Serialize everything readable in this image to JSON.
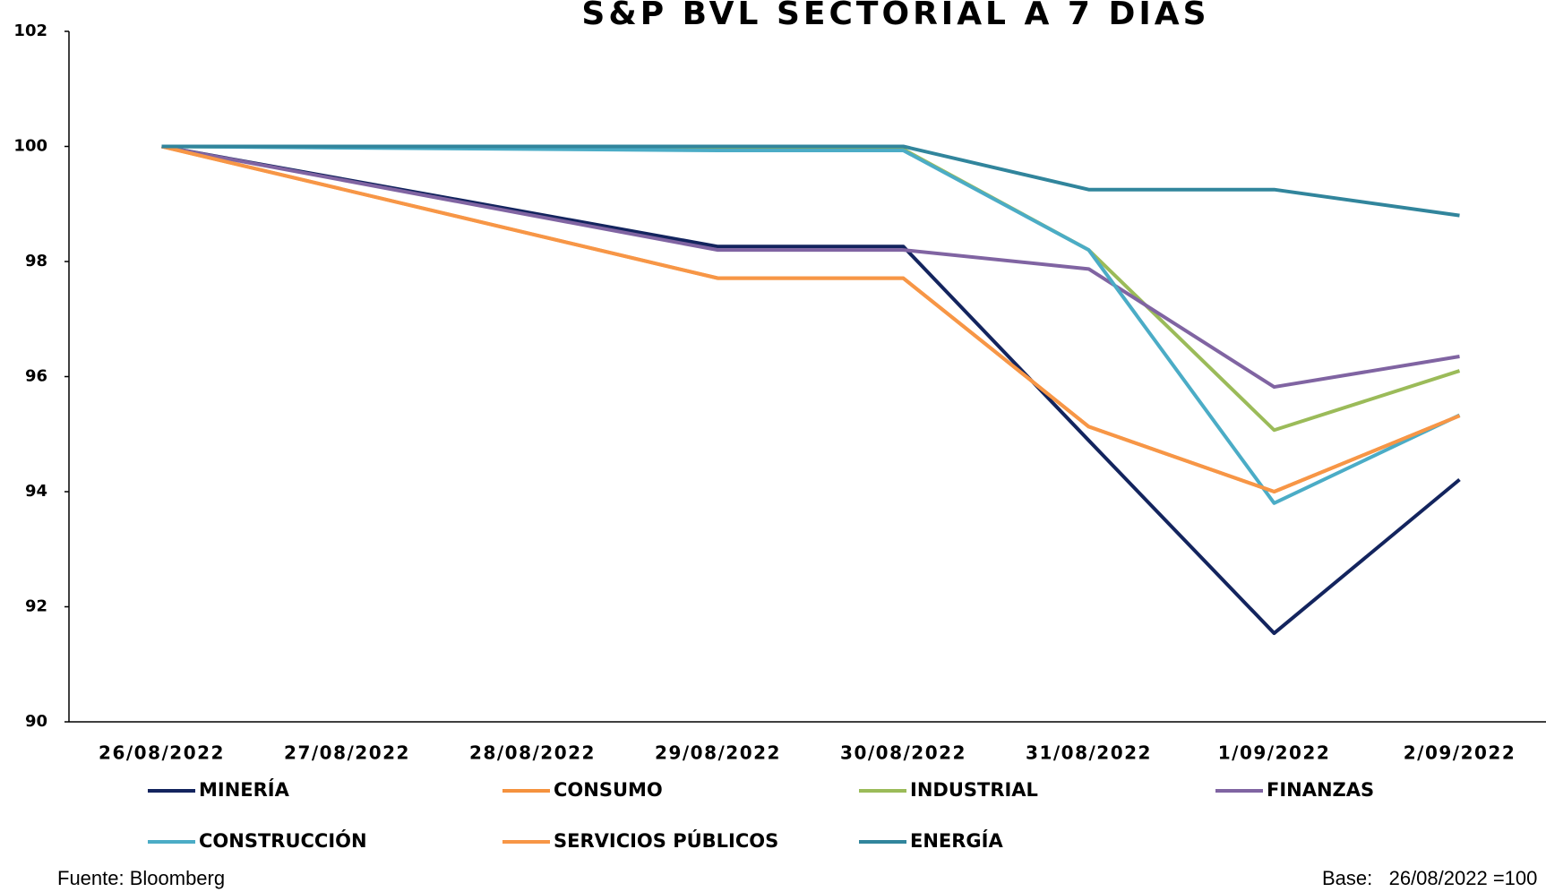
{
  "chart_data": {
    "type": "line",
    "title": "S&P BVL SECTORIAL A 7 DIAS",
    "categories": [
      "26/08/2022",
      "27/08/2022",
      "28/08/2022",
      "29/08/2022",
      "30/08/2022",
      "31/08/2022",
      "1/09/2022",
      "2/09/2022"
    ],
    "series": [
      {
        "name": "MINERÍA",
        "color": "#13245e",
        "values": [
          100,
          null,
          null,
          98.26,
          98.26,
          94.89,
          91.54,
          94.21
        ]
      },
      {
        "name": "CONSUMO",
        "color": "#f5923e",
        "values": [
          100,
          null,
          null,
          97.71,
          97.71,
          95.13,
          94.0,
          95.32
        ]
      },
      {
        "name": "INDUSTRIAL",
        "color": "#9bbb59",
        "values": [
          100,
          null,
          null,
          99.95,
          99.95,
          98.2,
          95.07,
          96.1
        ]
      },
      {
        "name": "FINANZAS",
        "color": "#8064a2",
        "values": [
          100,
          null,
          null,
          98.2,
          98.2,
          97.87,
          95.82,
          96.35
        ]
      },
      {
        "name": "CONSTRUCCIÓN",
        "color": "#4bacc6",
        "values": [
          100,
          null,
          null,
          99.93,
          99.93,
          98.2,
          93.8,
          95.33
        ]
      },
      {
        "name": "SERVICIOS PÚBLICOS",
        "color": "#f79646",
        "values": [
          100,
          null,
          null,
          97.71,
          97.71,
          95.13,
          94.0,
          95.32
        ]
      },
      {
        "name": "ENERGÍA",
        "color": "#31859c",
        "values": [
          100,
          null,
          null,
          100,
          100,
          99.25,
          99.25,
          98.8
        ]
      }
    ],
    "ylim": [
      90,
      102
    ],
    "yticks": [
      90,
      92,
      94,
      96,
      98,
      100,
      102
    ],
    "span_gaps": true,
    "source": "Fuente: Bloomberg",
    "note": "Base:   26/08/2022 =100"
  }
}
